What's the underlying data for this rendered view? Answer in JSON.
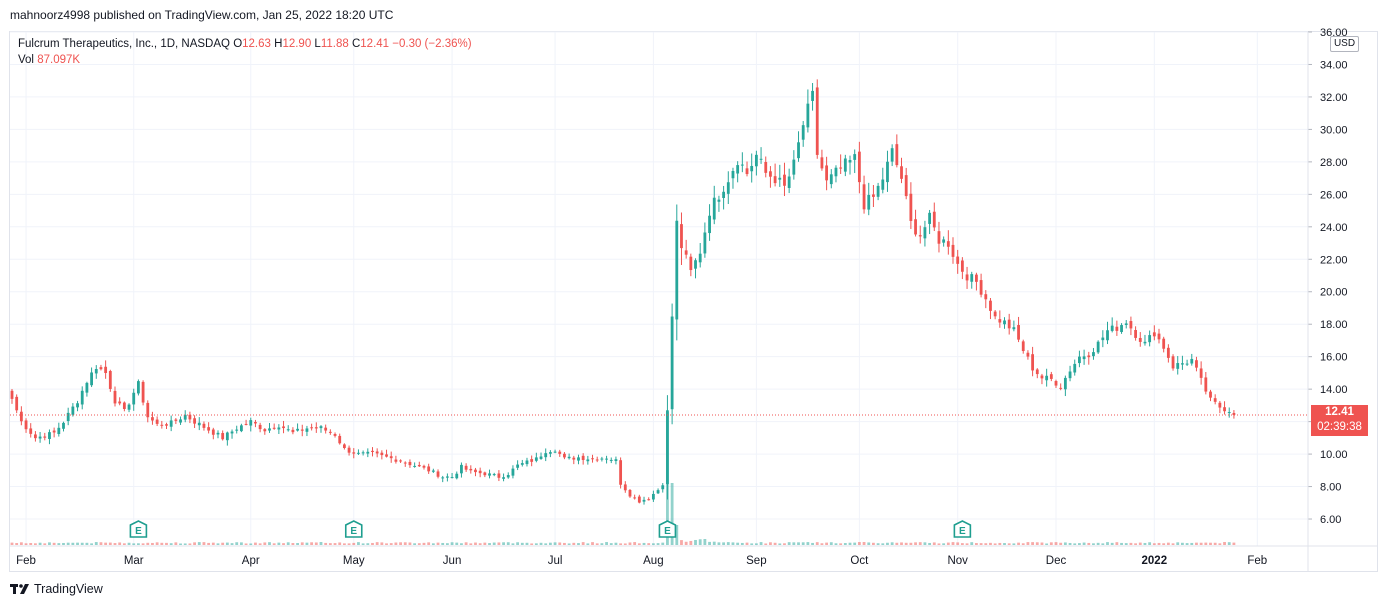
{
  "header": {
    "credit": "mahnoorz4998 published on TradingView.com, Jan 25, 2022 18:20 UTC"
  },
  "legend": {
    "symbol": "Fulcrum Therapeutics, Inc., 1D, NASDAQ",
    "o_label": "O",
    "o_value": "12.63",
    "h_label": "H",
    "h_value": "12.90",
    "l_label": "L",
    "l_value": "11.88",
    "c_label": "C",
    "c_value": "12.41",
    "change": "−0.30 (−2.36%)",
    "vol_label": "Vol",
    "vol_value": "87.097K"
  },
  "currency": "USD",
  "last_price": {
    "price": "12.41",
    "countdown": "02:39:38"
  },
  "brand": {
    "name": "TradingView"
  },
  "colors": {
    "up": "#26a69a",
    "down": "#ef5350",
    "grid": "#f0f3fa",
    "axis_text": "#131722"
  },
  "chart_data": {
    "type": "candlestick",
    "ylim": [
      4.4,
      36.0
    ],
    "y_ticks": [
      "6.00",
      "8.00",
      "10.00",
      "12.00",
      "14.00",
      "16.00",
      "18.00",
      "20.00",
      "22.00",
      "24.00",
      "26.00",
      "28.00",
      "30.00",
      "32.00",
      "34.00",
      "36.00"
    ],
    "x_ticks": [
      "Feb",
      "Mar",
      "Apr",
      "May",
      "Jun",
      "Jul",
      "Aug",
      "Sep",
      "Oct",
      "Nov",
      "Dec",
      "2022",
      "Feb"
    ],
    "x_tick_index": [
      3,
      26,
      51,
      73,
      94,
      116,
      137,
      159,
      181,
      202,
      223,
      244,
      266
    ],
    "x_range": [
      0,
      267
    ],
    "earnings_markers": [
      {
        "label": "E",
        "index": 27
      },
      {
        "label": "E",
        "index": 73
      },
      {
        "label": "E",
        "index": 140
      },
      {
        "label": "E",
        "index": 203
      }
    ],
    "last_close": 12.41,
    "anchors": [
      [
        0,
        13.4
      ],
      [
        2,
        12.0
      ],
      [
        5,
        11.0
      ],
      [
        9,
        11.3
      ],
      [
        11,
        12.0
      ],
      [
        14,
        13.3
      ],
      [
        16,
        14.5
      ],
      [
        18,
        15.4
      ],
      [
        20,
        15.0
      ],
      [
        22,
        13.3
      ],
      [
        24,
        12.6
      ],
      [
        26,
        13.8
      ],
      [
        27,
        14.3
      ],
      [
        29,
        12.3
      ],
      [
        31,
        11.8
      ],
      [
        34,
        11.9
      ],
      [
        37,
        12.4
      ],
      [
        39,
        12.0
      ],
      [
        42,
        11.5
      ],
      [
        45,
        11.0
      ],
      [
        48,
        11.6
      ],
      [
        51,
        12.0
      ],
      [
        54,
        11.5
      ],
      [
        57,
        11.8
      ],
      [
        60,
        11.3
      ],
      [
        63,
        11.6
      ],
      [
        66,
        11.6
      ],
      [
        69,
        11.2
      ],
      [
        71,
        10.3
      ],
      [
        74,
        10.0
      ],
      [
        77,
        10.0
      ],
      [
        80,
        9.8
      ],
      [
        83,
        9.6
      ],
      [
        86,
        9.3
      ],
      [
        89,
        9.0
      ],
      [
        92,
        8.6
      ],
      [
        94,
        8.6
      ],
      [
        96,
        9.2
      ],
      [
        98,
        8.9
      ],
      [
        101,
        8.8
      ],
      [
        104,
        8.6
      ],
      [
        106,
        8.8
      ],
      [
        108,
        9.3
      ],
      [
        110,
        9.5
      ],
      [
        112,
        9.7
      ],
      [
        114,
        10.2
      ],
      [
        116,
        10.3
      ],
      [
        118,
        9.7
      ],
      [
        121,
        9.8
      ],
      [
        124,
        9.7
      ],
      [
        127,
        9.8
      ],
      [
        129,
        9.6
      ],
      [
        130,
        8.2
      ],
      [
        132,
        7.5
      ],
      [
        134,
        7.1
      ],
      [
        136,
        7.3
      ],
      [
        138,
        7.8
      ],
      [
        139,
        8.2
      ],
      [
        140,
        12.6
      ],
      [
        141,
        18.5
      ],
      [
        142,
        24.2
      ],
      [
        143,
        22.8
      ],
      [
        145,
        21.2
      ],
      [
        147,
        22.5
      ],
      [
        149,
        25.0
      ],
      [
        151,
        26.0
      ],
      [
        153,
        27.0
      ],
      [
        155,
        28.2
      ],
      [
        157,
        27.3
      ],
      [
        159,
        28.4
      ],
      [
        161,
        27.3
      ],
      [
        163,
        27.0
      ],
      [
        165,
        26.4
      ],
      [
        167,
        27.8
      ],
      [
        169,
        30.3
      ],
      [
        171,
        32.0
      ],
      [
        172,
        28.5
      ],
      [
        174,
        26.7
      ],
      [
        176,
        27.3
      ],
      [
        178,
        27.8
      ],
      [
        180,
        28.2
      ],
      [
        182,
        25.4
      ],
      [
        184,
        25.8
      ],
      [
        186,
        27.0
      ],
      [
        188,
        28.6
      ],
      [
        190,
        27.0
      ],
      [
        192,
        24.2
      ],
      [
        194,
        23.5
      ],
      [
        196,
        24.5
      ],
      [
        198,
        23.2
      ],
      [
        200,
        23.0
      ],
      [
        202,
        21.7
      ],
      [
        204,
        21.0
      ],
      [
        206,
        20.6
      ],
      [
        208,
        19.6
      ],
      [
        210,
        18.4
      ],
      [
        212,
        18.1
      ],
      [
        214,
        17.6
      ],
      [
        216,
        16.4
      ],
      [
        218,
        15.3
      ],
      [
        220,
        14.7
      ],
      [
        222,
        14.6
      ],
      [
        224,
        14.2
      ],
      [
        226,
        15.2
      ],
      [
        228,
        16.0
      ],
      [
        230,
        16.2
      ],
      [
        232,
        16.8
      ],
      [
        234,
        17.6
      ],
      [
        236,
        17.8
      ],
      [
        238,
        18.2
      ],
      [
        240,
        17.4
      ],
      [
        242,
        16.8
      ],
      [
        244,
        17.5
      ],
      [
        246,
        16.6
      ],
      [
        248,
        15.4
      ],
      [
        250,
        15.6
      ],
      [
        252,
        15.8
      ],
      [
        254,
        14.5
      ],
      [
        256,
        13.3
      ],
      [
        258,
        12.9
      ],
      [
        260,
        12.7
      ],
      [
        261,
        12.41
      ]
    ]
  }
}
